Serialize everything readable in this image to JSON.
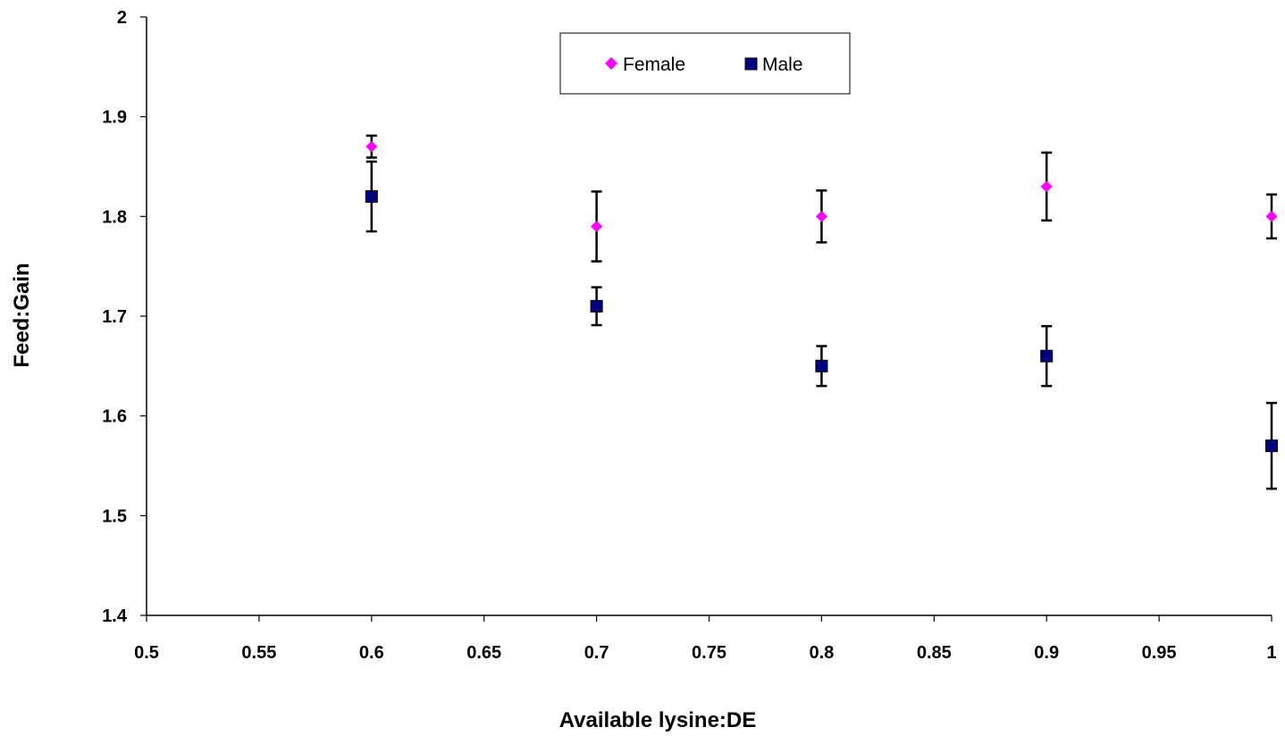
{
  "chart_data": {
    "type": "scatter",
    "xlabel": "Available lysine:DE",
    "ylabel": "Feed:Gain",
    "xlim": [
      0.5,
      1
    ],
    "ylim": [
      1.4,
      2
    ],
    "x_ticks": [
      0.5,
      0.55,
      0.6,
      0.65,
      0.7,
      0.75,
      0.8,
      0.85,
      0.9,
      0.95,
      1
    ],
    "y_ticks": [
      1.4,
      1.5,
      1.6,
      1.7,
      1.8,
      1.9,
      2
    ],
    "x_tick_labels": [
      "0.5",
      "0.55",
      "0.6",
      "0.65",
      "0.7",
      "0.75",
      "0.8",
      "0.85",
      "0.9",
      "0.95",
      "1"
    ],
    "y_tick_labels": [
      "1.4",
      "1.5",
      "1.6",
      "1.7",
      "1.8",
      "1.9",
      "2"
    ],
    "grid": false,
    "legend_position": "top-center",
    "series": [
      {
        "name": "Female",
        "marker": "diamond",
        "color": "#FF00FF",
        "x": [
          0.6,
          0.7,
          0.8,
          0.9,
          1.0
        ],
        "y": [
          1.87,
          1.79,
          1.8,
          1.83,
          1.8
        ],
        "error": [
          0.011,
          0.035,
          0.026,
          0.034,
          0.022
        ]
      },
      {
        "name": "Male",
        "marker": "square",
        "color": "#000080",
        "x": [
          0.6,
          0.7,
          0.8,
          0.9,
          1.0
        ],
        "y": [
          1.82,
          1.71,
          1.65,
          1.66,
          1.57
        ],
        "error": [
          0.035,
          0.019,
          0.02,
          0.03,
          0.043
        ]
      }
    ]
  }
}
